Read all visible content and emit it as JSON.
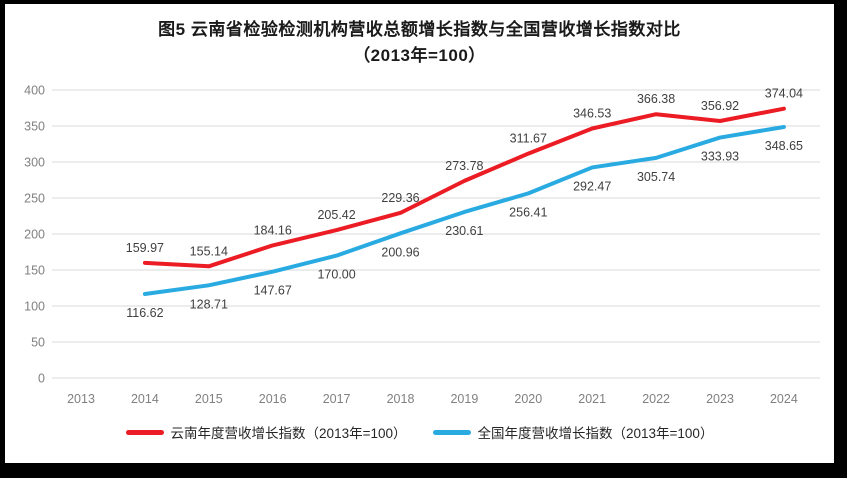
{
  "title": {
    "line1": "图5  云南省检验检测机构营收总额增长指数与全国营收增长指数对比",
    "line2": "（2013年=100）"
  },
  "chart_data": {
    "type": "line",
    "categories": [
      "2013",
      "2014",
      "2015",
      "2016",
      "2017",
      "2018",
      "2019",
      "2020",
      "2021",
      "2022",
      "2023",
      "2024"
    ],
    "series": [
      {
        "name": "云南年度营收增长指数（2013年=100）",
        "color": "#ec1c24",
        "label_position": "above",
        "values": [
          null,
          159.97,
          155.14,
          184.16,
          205.42,
          229.36,
          273.78,
          311.67,
          346.53,
          366.38,
          356.92,
          374.04
        ],
        "labels": [
          "",
          "159.97",
          "155.14",
          "184.16",
          "205.42",
          "229.36",
          "273.78",
          "311.67",
          "346.53",
          "366.38",
          "356.92",
          "374.04"
        ]
      },
      {
        "name": "全国年度营收增长指数（2013年=100）",
        "color": "#29abe2",
        "label_position": "below",
        "values": [
          null,
          116.62,
          128.71,
          147.67,
          170.0,
          200.96,
          230.61,
          256.41,
          292.47,
          305.74,
          333.93,
          348.65
        ],
        "labels": [
          "",
          "116.62",
          "128.71",
          "147.67",
          "170.00",
          "200.96",
          "230.61",
          "256.41",
          "292.47",
          "305.74",
          "333.93",
          "348.65"
        ]
      }
    ],
    "ylim": [
      0,
      400
    ],
    "ytick_step": 50,
    "ytick_labels": [
      "0",
      "50",
      "100",
      "150",
      "200",
      "250",
      "300",
      "350",
      "400"
    ],
    "grid": "horizontal",
    "legend_position": "bottom",
    "grid_color": "#d9d9d9",
    "axis_label_color": "#808080",
    "data_label_color": "#404040"
  }
}
